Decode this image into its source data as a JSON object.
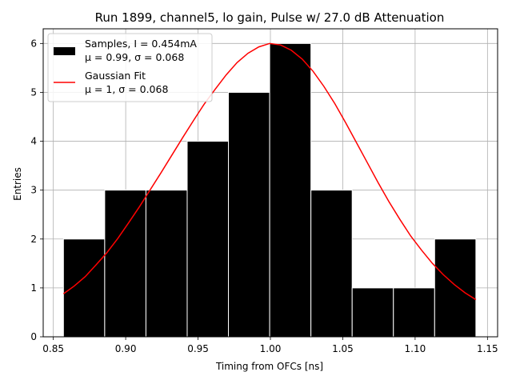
{
  "chart_data": {
    "type": "bar",
    "title": "Run 1899, channel5, lo gain, Pulse w/ 27.0 dB Attenuation",
    "xlabel": "Timing from OFCs [ns]",
    "ylabel": "Entries",
    "xlim": [
      0.843,
      1.157
    ],
    "ylim": [
      0,
      6.3
    ],
    "grid": true,
    "legend_position": "upper-left",
    "xticks": [
      {
        "value": 0.85,
        "label": "0.85"
      },
      {
        "value": 0.9,
        "label": "0.90"
      },
      {
        "value": 0.95,
        "label": "0.95"
      },
      {
        "value": 1.0,
        "label": "1.00"
      },
      {
        "value": 1.05,
        "label": "1.05"
      },
      {
        "value": 1.1,
        "label": "1.10"
      },
      {
        "value": 1.15,
        "label": "1.15"
      }
    ],
    "yticks": [
      {
        "value": 0,
        "label": "0"
      },
      {
        "value": 1,
        "label": "1"
      },
      {
        "value": 2,
        "label": "2"
      },
      {
        "value": 3,
        "label": "3"
      },
      {
        "value": 4,
        "label": "4"
      },
      {
        "value": 5,
        "label": "5"
      },
      {
        "value": 6,
        "label": "6"
      }
    ],
    "histogram": {
      "name": "Samples, I = 0.454mA",
      "stats": "μ = 0.99, σ = 0.068",
      "color": "#000000",
      "edge_color": "#ffffff",
      "bin_edges": [
        0.857,
        0.8855,
        0.914,
        0.9425,
        0.971,
        0.9995,
        1.028,
        1.0565,
        1.085,
        1.1135,
        1.142
      ],
      "counts": [
        2,
        3,
        3,
        4,
        5,
        6,
        3,
        1,
        1,
        2
      ]
    },
    "fit": {
      "name": "Gaussian Fit",
      "stats": "μ = 1, σ = 0.068",
      "color": "#ff0000",
      "x": [
        0.857,
        0.8645,
        0.872,
        0.8795,
        0.887,
        0.8945,
        0.902,
        0.9095,
        0.917,
        0.9245,
        0.932,
        0.9395,
        0.947,
        0.9545,
        0.962,
        0.9695,
        0.977,
        0.9845,
        0.992,
        0.9995,
        1.007,
        1.0145,
        1.022,
        1.0295,
        1.037,
        1.0445,
        1.052,
        1.0595,
        1.067,
        1.0745,
        1.082,
        1.0895,
        1.097,
        1.1045,
        1.112,
        1.1195,
        1.127,
        1.1345,
        1.142
      ],
      "y": [
        0.88,
        1.04,
        1.23,
        1.47,
        1.72,
        2.01,
        2.33,
        2.66,
        3.01,
        3.36,
        3.72,
        4.08,
        4.43,
        4.77,
        5.07,
        5.36,
        5.61,
        5.8,
        5.93,
        6.0,
        5.97,
        5.86,
        5.68,
        5.43,
        5.12,
        4.77,
        4.38,
        3.97,
        3.56,
        3.15,
        2.76,
        2.4,
        2.06,
        1.77,
        1.5,
        1.27,
        1.07,
        0.9,
        0.76
      ]
    }
  }
}
